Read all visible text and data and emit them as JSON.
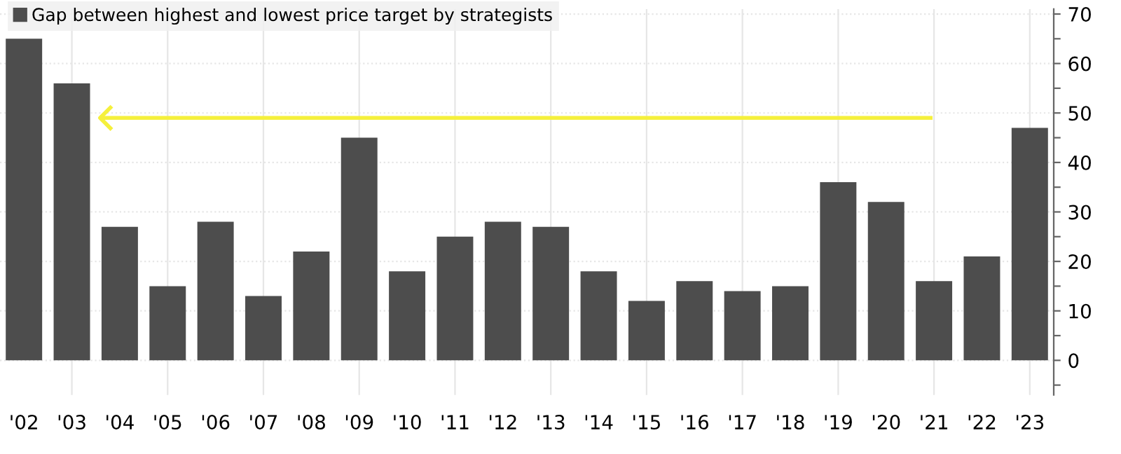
{
  "chart_data": {
    "type": "bar",
    "categories": [
      "'02",
      "'03",
      "'04",
      "'05",
      "'06",
      "'07",
      "'08",
      "'09",
      "'10",
      "'11",
      "'12",
      "'13",
      "'14",
      "'15",
      "'16",
      "'17",
      "'18",
      "'19",
      "'20",
      "'21",
      "'22",
      "'23"
    ],
    "series": [
      {
        "name": "Gap between highest and lowest price target by strategists",
        "color": "#4d4d4d",
        "values": [
          65,
          56,
          27,
          15,
          28,
          13,
          22,
          45,
          18,
          25,
          28,
          27,
          18,
          12,
          16,
          14,
          15,
          36,
          32,
          16,
          21,
          47
        ]
      }
    ],
    "ylim": [
      -7,
      71
    ],
    "yticks": [
      {
        "value": -5,
        "label": null
      },
      0,
      {
        "value": 5,
        "label": null
      },
      10,
      {
        "value": 15,
        "label": null
      },
      20,
      {
        "value": 25,
        "label": null
      },
      30,
      {
        "value": 35,
        "label": null
      },
      40,
      {
        "value": 45,
        "label": null
      },
      50,
      {
        "value": 55,
        "label": null
      },
      60,
      {
        "value": 65,
        "label": null
      },
      70
    ],
    "ref_lines": [
      {
        "axis": "y",
        "value": 49,
        "color": "#f5f03c"
      }
    ],
    "grid": true,
    "legend": "top left"
  }
}
